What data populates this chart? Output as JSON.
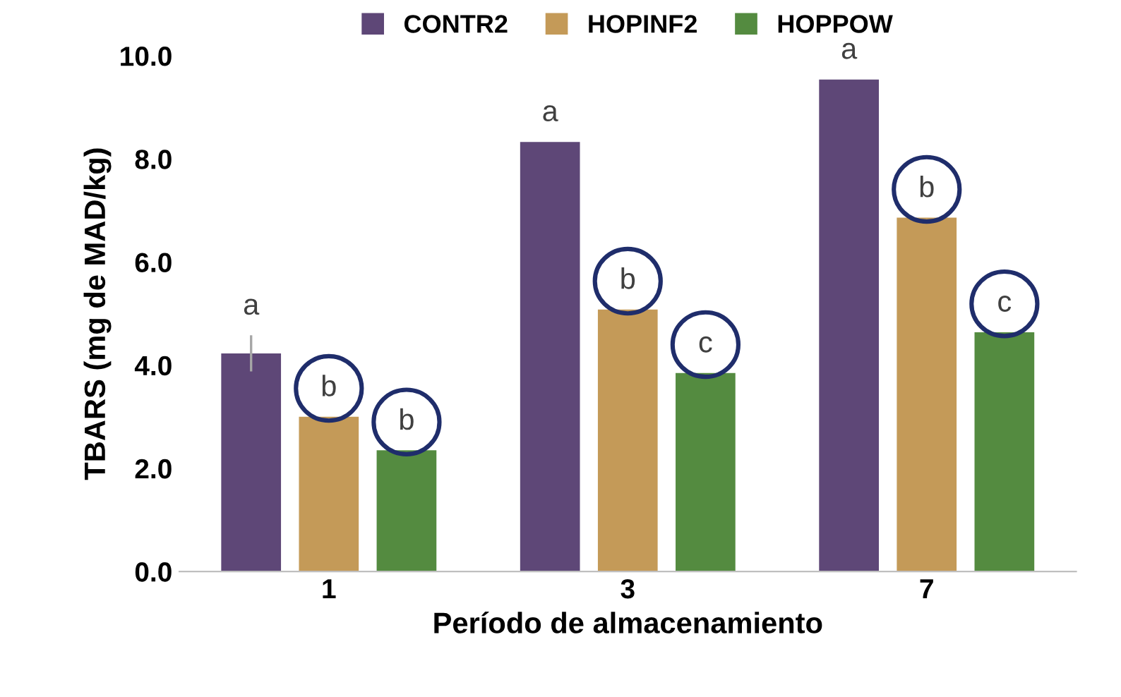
{
  "chart_data": {
    "type": "bar",
    "xlabel": "Período de almacenamiento",
    "ylabel": "TBARS (mg de MAD/kg)",
    "categories": [
      "1",
      "3",
      "7"
    ],
    "series": [
      {
        "name": "CONTR2",
        "color": "#5e4777",
        "values": [
          4.23,
          8.33,
          9.54
        ],
        "errors": [
          0.35,
          null,
          null
        ],
        "value_labels": [
          "a",
          "a",
          "a"
        ]
      },
      {
        "name": "HOPINF2",
        "color": "#c49a58",
        "values": [
          3.0,
          5.08,
          6.86
        ],
        "value_labels": [
          "b",
          "b",
          "b"
        ]
      },
      {
        "name": "HOPPOW",
        "color": "#548b40",
        "values": [
          2.35,
          3.85,
          4.64
        ],
        "value_labels": [
          "b",
          "c",
          "c"
        ]
      }
    ],
    "ylim": [
      0,
      10
    ],
    "yticks": [
      {
        "value": 0,
        "label": "0.0"
      },
      {
        "value": 2,
        "label": "2.0"
      },
      {
        "value": 4,
        "label": "4.0"
      },
      {
        "value": 6,
        "label": "6.0"
      },
      {
        "value": 8,
        "label": "8.0"
      },
      {
        "value": 10,
        "label": "10.0"
      }
    ],
    "grid": false,
    "legend": "top"
  }
}
